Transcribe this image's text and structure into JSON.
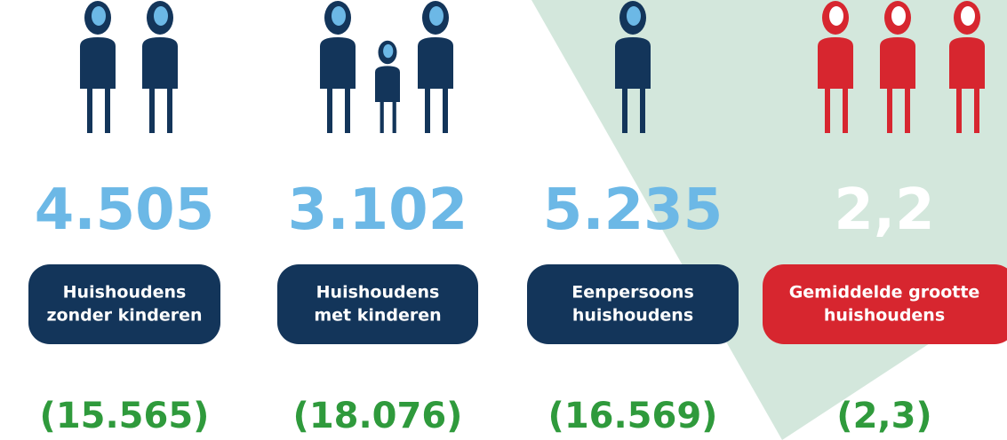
{
  "items": [
    {
      "number": "4.505",
      "label": [
        "Huishoudens",
        "zonder kinderen"
      ],
      "comparison": "(15.565)"
    },
    {
      "number": "3.102",
      "label": [
        "Huishoudens",
        "met kinderen"
      ],
      "comparison": "(18.076)"
    },
    {
      "number": "5.235",
      "label": [
        "Eenpersoons",
        "huishoudens"
      ],
      "comparison": "(16.569)"
    },
    {
      "number": "2,2",
      "label": [
        "Gemiddelde grootte",
        "huishoudens"
      ],
      "comparison": "(2,3)"
    }
  ]
}
